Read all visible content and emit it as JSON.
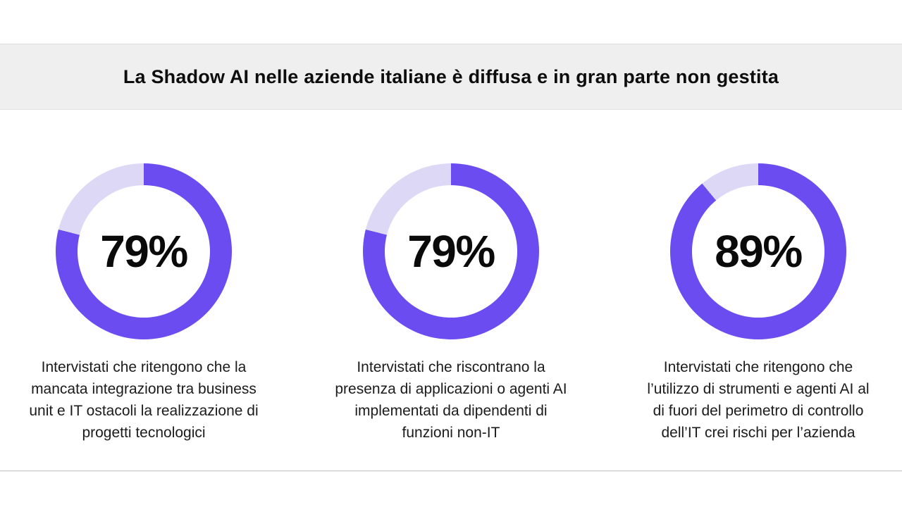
{
  "header": {
    "title": "La Shadow AI nelle aziende italiane è diffusa e in gran parte non gestita"
  },
  "colors": {
    "ring_fill": "#6b4cf0",
    "ring_track": "#dcd8f6",
    "banner_bg": "#efefef",
    "background": "#ffffff",
    "text": "#0d0d0d"
  },
  "chart_data": [
    {
      "type": "pie",
      "subtype": "donut",
      "value": 79,
      "remainder": 21,
      "label": "79%",
      "start_angle_deg": 0,
      "direction": "clockwise",
      "fill_color": "#6b4cf0",
      "track_color": "#dcd8f6",
      "caption": "Intervistati che ritengono che la\nmancata integrazione tra business\nunit e IT ostacoli la realizzazione di\nprogetti tecnologici"
    },
    {
      "type": "pie",
      "subtype": "donut",
      "value": 79,
      "remainder": 21,
      "label": "79%",
      "start_angle_deg": 0,
      "direction": "clockwise",
      "fill_color": "#6b4cf0",
      "track_color": "#dcd8f6",
      "caption": "Intervistati che riscontrano la\npresenza di applicazioni o agenti AI\nimplementati da dipendenti di\nfunzioni non-IT"
    },
    {
      "type": "pie",
      "subtype": "donut",
      "value": 89,
      "remainder": 11,
      "label": "89%",
      "start_angle_deg": 0,
      "direction": "clockwise",
      "fill_color": "#6b4cf0",
      "track_color": "#dcd8f6",
      "caption": "Intervistati che ritengono che\nl’utilizzo di strumenti e agenti AI al\ndi fuori del perimetro di controllo\ndell’IT crei rischi per l’azienda"
    }
  ]
}
